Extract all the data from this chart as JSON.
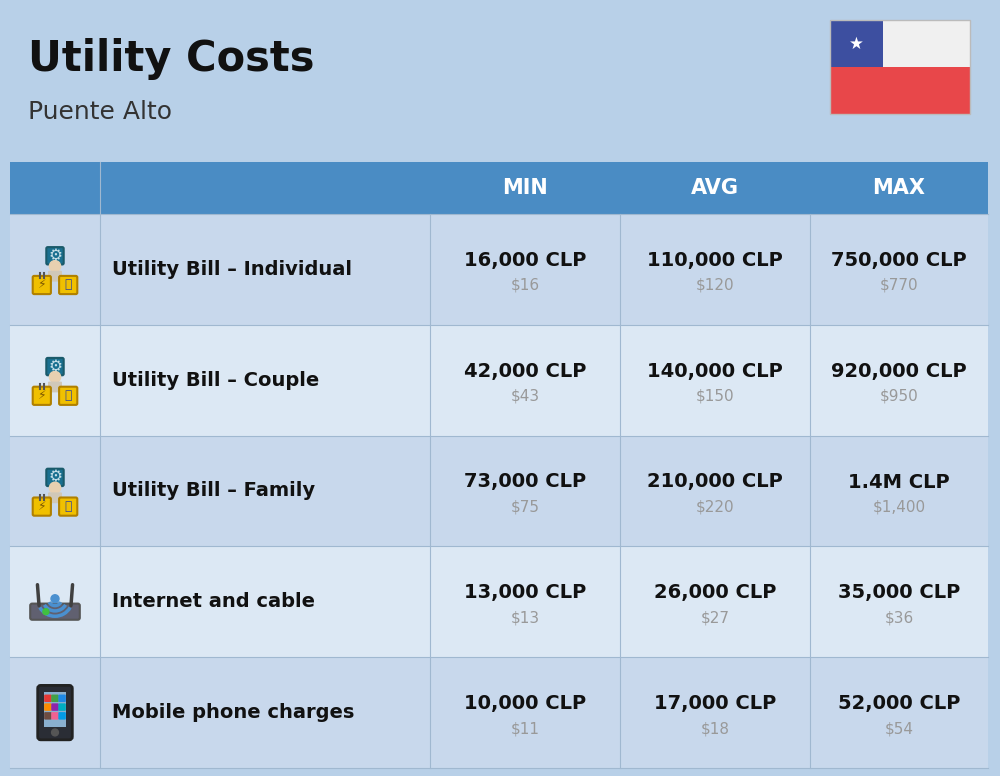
{
  "title": "Utility Costs",
  "subtitle": "Puente Alto",
  "bg_color": "#b8d0e8",
  "header_bg_color": "#4a8cc4",
  "row_bg_color_odd": "#c8d8ec",
  "row_bg_color_even": "#dce8f4",
  "header_text_color": "#ffffff",
  "row_text_color": "#111111",
  "sub_text_color": "#999999",
  "rows": [
    {
      "label": "Utility Bill – Individual",
      "min_clp": "16,000 CLP",
      "min_usd": "$16",
      "avg_clp": "110,000 CLP",
      "avg_usd": "$120",
      "max_clp": "750,000 CLP",
      "max_usd": "$770",
      "icon": "utility"
    },
    {
      "label": "Utility Bill – Couple",
      "min_clp": "42,000 CLP",
      "min_usd": "$43",
      "avg_clp": "140,000 CLP",
      "avg_usd": "$150",
      "max_clp": "920,000 CLP",
      "max_usd": "$950",
      "icon": "utility"
    },
    {
      "label": "Utility Bill – Family",
      "min_clp": "73,000 CLP",
      "min_usd": "$75",
      "avg_clp": "210,000 CLP",
      "avg_usd": "$220",
      "max_clp": "1.4M CLP",
      "max_usd": "$1,400",
      "icon": "utility"
    },
    {
      "label": "Internet and cable",
      "min_clp": "13,000 CLP",
      "min_usd": "$13",
      "avg_clp": "26,000 CLP",
      "avg_usd": "$27",
      "max_clp": "35,000 CLP",
      "max_usd": "$36",
      "icon": "internet"
    },
    {
      "label": "Mobile phone charges",
      "min_clp": "10,000 CLP",
      "min_usd": "$11",
      "avg_clp": "17,000 CLP",
      "avg_usd": "$18",
      "max_clp": "52,000 CLP",
      "max_usd": "$54",
      "icon": "mobile"
    }
  ],
  "title_fontsize": 30,
  "subtitle_fontsize": 18,
  "header_fontsize": 15,
  "row_label_fontsize": 14,
  "row_value_fontsize": 14,
  "row_sub_fontsize": 11,
  "flag_blue": "#3d4fa0",
  "flag_red": "#e8474a",
  "flag_white": "#f0f0f0"
}
